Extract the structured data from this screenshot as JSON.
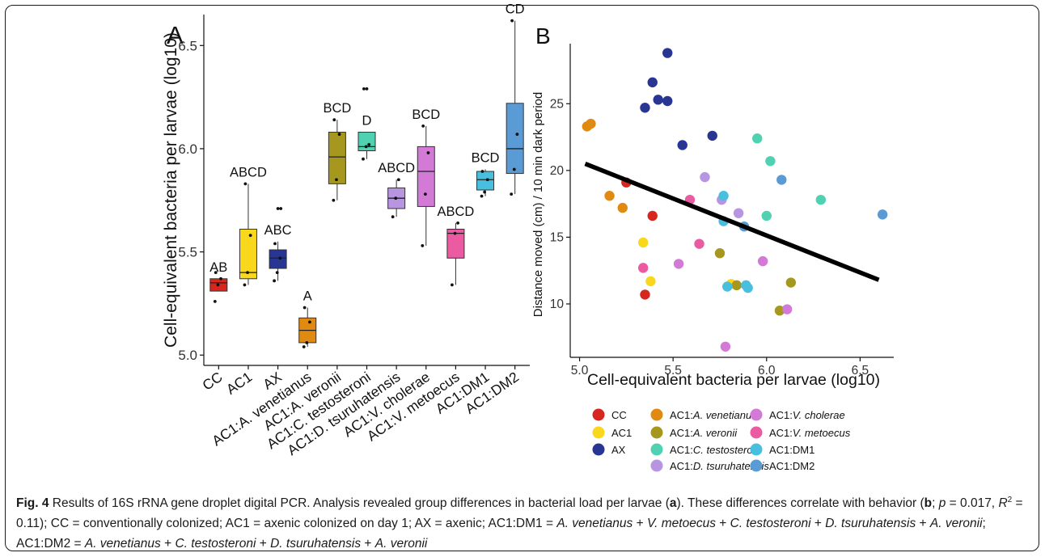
{
  "colors": {
    "CC": "#d7261e",
    "AC1": "#f9d71c",
    "AX": "#283593",
    "AC1:A. venetianus": "#e08a12",
    "AC1:A. veronii": "#a6981e",
    "AC1:C. testosteroni": "#4fd1b2",
    "AC1:D. tsuruhatensis": "#b795e0",
    "AC1:V. cholerae": "#d27ad6",
    "AC1:V. metoecus": "#ea5ba2",
    "AC1:DM1": "#49bfe0",
    "AC1:DM2": "#5b9bd5"
  },
  "chart_data": [
    {
      "type": "box",
      "panel_label": "A",
      "ylabel": "Cell-equivalent bacteria per larvae (log10)",
      "ylim": [
        4.95,
        6.65
      ],
      "yticks": [
        5.0,
        5.5,
        6.0,
        6.5
      ],
      "ytick_labels": [
        "5.0",
        "5.5",
        "6.0",
        "6.5"
      ],
      "categories": [
        "CC",
        "AC1",
        "AX",
        "AC1:A. venetianus",
        "AC1:A. veronii",
        "AC1:C. testosteroni",
        "AC1:D. tsuruhatensis",
        "AC1:V. cholerae",
        "AC1:V. metoecus",
        "AC1:DM1",
        "AC1:DM2"
      ],
      "boxes": [
        {
          "group": "CC",
          "min": 5.31,
          "q1": 5.31,
          "median": 5.35,
          "q3": 5.37,
          "max": 5.37,
          "letters": "AB",
          "points": [
            5.26,
            5.34,
            5.37,
            5.4
          ]
        },
        {
          "group": "AC1",
          "min": 5.34,
          "q1": 5.37,
          "median": 5.4,
          "q3": 5.61,
          "max": 5.83,
          "letters": "ABCD",
          "points": [
            5.34,
            5.4,
            5.58,
            5.83
          ]
        },
        {
          "group": "AX",
          "min": 5.36,
          "q1": 5.42,
          "median": 5.47,
          "q3": 5.51,
          "max": 5.55,
          "letters": "ABC",
          "points": [
            5.36,
            5.4,
            5.47,
            5.54,
            5.71,
            5.71
          ]
        },
        {
          "group": "AC1:A. venetianus",
          "min": 5.04,
          "q1": 5.06,
          "median": 5.12,
          "q3": 5.18,
          "max": 5.23,
          "letters": "A",
          "points": [
            5.04,
            5.06,
            5.16,
            5.23
          ]
        },
        {
          "group": "AC1:A. veronii",
          "min": 5.75,
          "q1": 5.83,
          "median": 5.96,
          "q3": 6.08,
          "max": 6.14,
          "letters": "BCD",
          "points": [
            5.75,
            5.85,
            6.07,
            6.14
          ]
        },
        {
          "group": "AC1:C. testosteroni",
          "min": 5.95,
          "q1": 5.99,
          "median": 6.01,
          "q3": 6.08,
          "max": 6.08,
          "letters": "D",
          "points": [
            5.95,
            6.01,
            6.02,
            6.29,
            6.29
          ]
        },
        {
          "group": "AC1:D. tsuruhatensis",
          "min": 5.67,
          "q1": 5.71,
          "median": 5.76,
          "q3": 5.81,
          "max": 5.85,
          "letters": "ABCD",
          "points": [
            5.67,
            5.76,
            5.85
          ]
        },
        {
          "group": "AC1:V. cholerae",
          "min": 5.53,
          "q1": 5.72,
          "median": 5.89,
          "q3": 6.01,
          "max": 6.11,
          "letters": "BCD",
          "points": [
            5.53,
            5.78,
            5.98,
            6.11
          ]
        },
        {
          "group": "AC1:V. metoecus",
          "min": 5.34,
          "q1": 5.47,
          "median": 5.59,
          "q3": 5.61,
          "max": 5.64,
          "letters": "ABCD",
          "points": [
            5.34,
            5.59,
            5.64
          ]
        },
        {
          "group": "AC1:DM1",
          "min": 5.77,
          "q1": 5.8,
          "median": 5.85,
          "q3": 5.89,
          "max": 5.9,
          "letters": "BCD",
          "points": [
            5.77,
            5.79,
            5.85,
            5.89
          ]
        },
        {
          "group": "AC1:DM2",
          "min": 5.78,
          "q1": 5.88,
          "median": 6.0,
          "q3": 6.22,
          "max": 6.62,
          "letters": "CD",
          "points": [
            5.78,
            5.9,
            6.07,
            6.62
          ]
        }
      ]
    },
    {
      "type": "scatter",
      "panel_label": "B",
      "xlabel": "Cell-equivalent bacteria per larvae (log10)",
      "ylabel": "Distance moved (cm) / 10 min dark period",
      "xlim": [
        4.95,
        6.68
      ],
      "ylim": [
        6.0,
        29.5
      ],
      "xticks": [
        5.0,
        5.5,
        6.0,
        6.5
      ],
      "xtick_labels": [
        "5.0",
        "5.5",
        "6.0",
        "6.5"
      ],
      "yticks": [
        10,
        15,
        20,
        25
      ],
      "ytick_labels": [
        "10",
        "15",
        "20",
        "25"
      ],
      "regression": {
        "x": [
          5.03,
          6.6
        ],
        "y": [
          20.5,
          11.8
        ]
      },
      "legend_title": "",
      "legend_columns": [
        [
          "CC",
          "AC1",
          "AX"
        ],
        [
          "AC1:A. venetianus",
          "AC1:A. veronii",
          "AC1:C. testosteroni",
          "AC1:D. tsuruhatensis"
        ],
        [
          "AC1:V. cholerae",
          "AC1:V. metoecus",
          "AC1:DM1",
          "AC1:DM2"
        ]
      ],
      "legend_labels": {
        "CC": {
          "prefix": "CC",
          "genus": ""
        },
        "AC1": {
          "prefix": "AC1",
          "genus": ""
        },
        "AX": {
          "prefix": "AX",
          "genus": ""
        },
        "AC1:A. venetianus": {
          "prefix": "AC1:",
          "genus": "A. venetianus"
        },
        "AC1:A. veronii": {
          "prefix": "AC1:",
          "genus": "A. veronii"
        },
        "AC1:C. testosteroni": {
          "prefix": "AC1:",
          "genus": "C. testosteroni"
        },
        "AC1:D. tsuruhatensis": {
          "prefix": "AC1:",
          "genus": "D. tsuruhatensis"
        },
        "AC1:V. cholerae": {
          "prefix": "AC1:",
          "genus": "V. cholerae"
        },
        "AC1:V. metoecus": {
          "prefix": "AC1:",
          "genus": "V. metoecus"
        },
        "AC1:DM1": {
          "prefix": "AC1:DM1",
          "genus": ""
        },
        "AC1:DM2": {
          "prefix": "AC1:DM2",
          "genus": ""
        }
      },
      "series": [
        {
          "name": "CC",
          "points": [
            [
              5.25,
              19.1
            ],
            [
              5.39,
              16.6
            ],
            [
              5.35,
              10.7
            ]
          ]
        },
        {
          "name": "AC1",
          "points": [
            [
              5.34,
              14.6
            ],
            [
              5.38,
              11.7
            ],
            [
              5.81,
              11.5
            ]
          ]
        },
        {
          "name": "AX",
          "points": [
            [
              5.35,
              24.7
            ],
            [
              5.39,
              26.6
            ],
            [
              5.42,
              25.3
            ],
            [
              5.47,
              25.2
            ],
            [
              5.47,
              28.8
            ],
            [
              5.55,
              21.9
            ],
            [
              5.71,
              22.6
            ]
          ]
        },
        {
          "name": "AC1:A. venetianus",
          "points": [
            [
              5.04,
              23.3
            ],
            [
              5.06,
              23.5
            ],
            [
              5.16,
              18.1
            ],
            [
              5.23,
              17.2
            ]
          ]
        },
        {
          "name": "AC1:A. veronii",
          "points": [
            [
              5.75,
              13.8
            ],
            [
              5.84,
              11.4
            ],
            [
              6.07,
              9.5
            ],
            [
              6.13,
              11.6
            ]
          ]
        },
        {
          "name": "AC1:C. testosteroni",
          "points": [
            [
              5.95,
              22.4
            ],
            [
              6.02,
              20.7
            ],
            [
              6.0,
              16.6
            ],
            [
              6.29,
              17.8
            ]
          ]
        },
        {
          "name": "AC1:D. tsuruhatensis",
          "points": [
            [
              5.67,
              19.5
            ],
            [
              5.76,
              17.8
            ],
            [
              5.85,
              16.8
            ]
          ]
        },
        {
          "name": "AC1:V. cholerae",
          "points": [
            [
              5.53,
              13.0
            ],
            [
              5.78,
              6.8
            ],
            [
              5.98,
              13.2
            ],
            [
              6.11,
              9.6
            ]
          ]
        },
        {
          "name": "AC1:V. metoecus",
          "points": [
            [
              5.34,
              12.7
            ],
            [
              5.59,
              17.8
            ],
            [
              5.64,
              14.5
            ]
          ]
        },
        {
          "name": "AC1:DM1",
          "points": [
            [
              5.77,
              18.1
            ],
            [
              5.79,
              11.3
            ],
            [
              5.77,
              16.2
            ],
            [
              5.89,
              11.4
            ],
            [
              5.9,
              11.2
            ]
          ]
        },
        {
          "name": "AC1:DM2",
          "points": [
            [
              5.88,
              15.8
            ],
            [
              6.08,
              19.3
            ],
            [
              6.62,
              16.7
            ]
          ]
        }
      ]
    }
  ],
  "caption": {
    "fig_label": "Fig. 4",
    "segments": [
      {
        "t": " Results of 16S rRNA gene droplet digital PCR. Analysis revealed group differences in bacterial load per larvae ("
      },
      {
        "t": "a",
        "b": true
      },
      {
        "t": "). These differences correlate with behavior ("
      },
      {
        "t": "b",
        "b": true
      },
      {
        "t": "; "
      },
      {
        "t": "p",
        "i": true
      },
      {
        "t": " = 0.017, "
      },
      {
        "t": "R",
        "i": true
      },
      {
        "t": "2",
        "sup": true
      },
      {
        "t": " = 0.11); CC = conventionally colonized; AC1 = axenic colonized on day 1; AX = axenic; AC1:DM1 = "
      },
      {
        "t": "A. venetianus",
        "i": true
      },
      {
        "t": " + "
      },
      {
        "t": "V. metoecus",
        "i": true
      },
      {
        "t": " + "
      },
      {
        "t": "C. testosteroni",
        "i": true
      },
      {
        "t": " + "
      },
      {
        "t": "D. tsuruhatensis",
        "i": true
      },
      {
        "t": " + "
      },
      {
        "t": "A. veronii",
        "i": true
      },
      {
        "t": "; AC1:DM2 = "
      },
      {
        "t": "A. venetianus",
        "i": true
      },
      {
        "t": " + "
      },
      {
        "t": "C. testosteroni",
        "i": true
      },
      {
        "t": " + "
      },
      {
        "t": "D. tsuruhatensis",
        "i": true
      },
      {
        "t": " + "
      },
      {
        "t": "A. veronii",
        "i": true
      }
    ]
  }
}
